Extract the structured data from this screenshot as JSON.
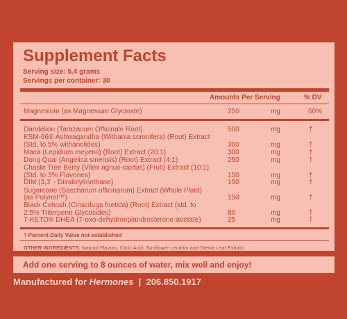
{
  "title": "Supplement Facts",
  "serving_size": "Serving size: 5.4 grams",
  "servings_per_container": "Servings per container: 30",
  "header": {
    "amounts": "Amounts Per Serving",
    "dv": "% DV"
  },
  "magnesium": {
    "name": "Magnesium (as Magnesium Glycinate)",
    "amount": "250",
    "unit": "mg",
    "dv": "60%"
  },
  "ingredients": [
    {
      "lines": [
        "Dandelion (Tarazacum Officinale Root)"
      ],
      "amount": "500",
      "unit": "mg",
      "dv": "†"
    },
    {
      "lines": [
        "KSM-66® Ashwagandha (Withania somnifera) (Root) Extract",
        "(Std. to 5% withanolides)"
      ],
      "amount": "300",
      "unit": "mg",
      "dv": "†"
    },
    {
      "lines": [
        "Maca (Lepidium meyenii) (Root) Extract (20:1)"
      ],
      "amount": "300",
      "unit": "mg",
      "dv": "†"
    },
    {
      "lines": [
        "Dong Quai (Angelica sinensis) (Root) Extract (4:1)"
      ],
      "amount": "250",
      "unit": "mg",
      "dv": "†"
    },
    {
      "lines": [
        "Chaste Tree Berry (Vitex agnus-castus) (Fruit) Extract (10:1)",
        "(Std. to 3% Flavones)"
      ],
      "amount": "150",
      "unit": "mg",
      "dv": "†"
    },
    {
      "lines": [
        "DIM (3,3' - Diindolylmethane)"
      ],
      "amount": "150",
      "unit": "mg",
      "dv": "†"
    },
    {
      "lines": [
        "Sugarcane (Saccharum officinarum) Extract (Whole Plant)",
        "(as Polynol™)"
      ],
      "amount": "150",
      "unit": "mg",
      "dv": "†"
    },
    {
      "lines": [
        "Black Cohosh (Cimicifuga foetida) (Root) Extract (std. to",
        "2.5% Triterpene Glycosides)"
      ],
      "amount": "80",
      "unit": "mg",
      "dv": "†"
    },
    {
      "lines": [
        "7-KETO® DHEA (7-oxo-dehydroepiandrosterone-acetate)"
      ],
      "amount": "25",
      "unit": "mg",
      "dv": "†"
    }
  ],
  "dv_note": "† Percent Daily Value not established",
  "other_label": "OTHER INGREDIENTS",
  "other_text": ": Natural Flavors, Citric Acid, Sunflower Lecithin and Stevia Leaf Extract.",
  "directions": "Add one serving to 8 ounces of water, mix well and enjoy!",
  "footer": {
    "prefix": "Manufactured for ",
    "brand": "Hermones",
    "sep": "  |  ",
    "phone": "206.850.1917"
  }
}
